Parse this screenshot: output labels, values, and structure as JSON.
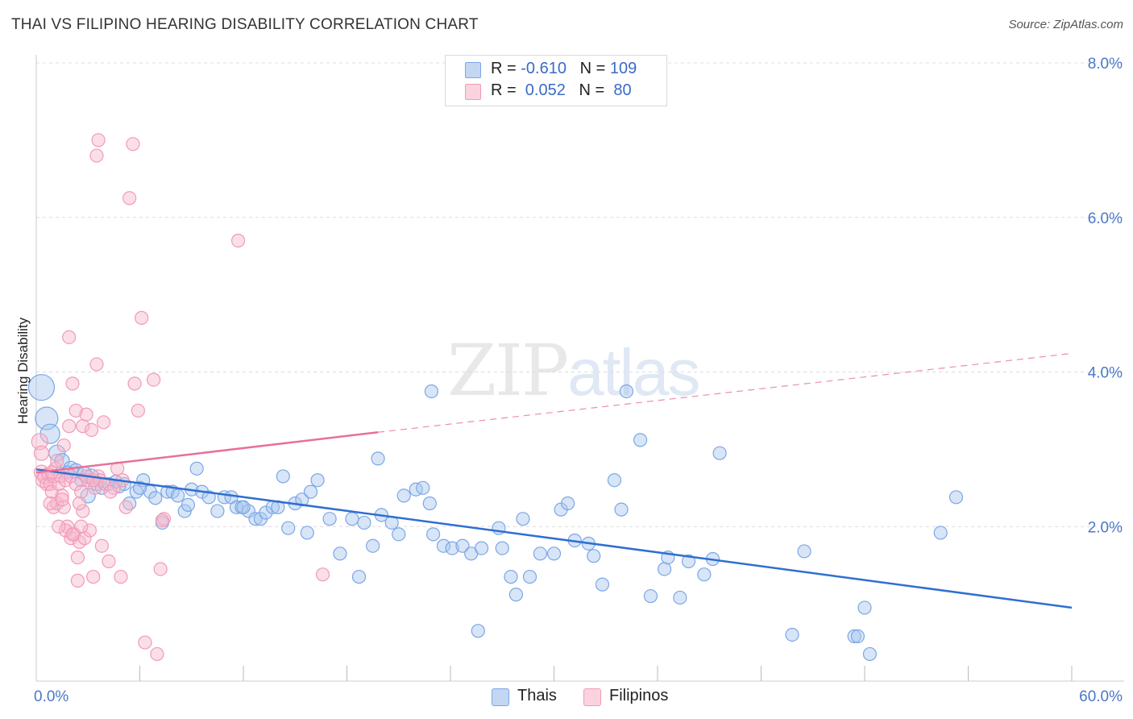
{
  "title": "THAI VS FILIPINO HEARING DISABILITY CORRELATION CHART",
  "source": "Source: ZipAtlas.com",
  "watermark": {
    "zip": "ZIP",
    "atlas": "atlas"
  },
  "legend": [
    {
      "r_label": "R =",
      "r_value": "-0.610",
      "n_label": "N =",
      "n_value": "109",
      "color": "#a9c6ee"
    },
    {
      "r_label": "R =",
      "r_value": " 0.052",
      "n_label": "N =",
      "n_value": " 80",
      "color": "#f7b9cc"
    }
  ],
  "bottom_legend": [
    {
      "label": "Thais",
      "color": "#a9c6ee"
    },
    {
      "label": "Filipinos",
      "color": "#f7b9cc"
    }
  ],
  "chart_data": {
    "type": "scatter",
    "title": "THAI VS FILIPINO HEARING DISABILITY CORRELATION CHART",
    "xlabel": "",
    "ylabel": "Hearing Disability",
    "xlim": [
      0,
      60
    ],
    "ylim": [
      0,
      8.0
    ],
    "x_tick_labels": [
      "0.0%",
      "60.0%"
    ],
    "y_ticks": [
      2.0,
      4.0,
      6.0,
      8.0
    ],
    "y_tick_labels": [
      "2.0%",
      "4.0%",
      "6.0%",
      "8.0%"
    ],
    "grid": true,
    "legend_position": "top-center",
    "series": [
      {
        "name": "Thais",
        "color": "#7aa7e6",
        "trend": {
          "x": [
            0,
            60
          ],
          "y": [
            2.74,
            0.95
          ],
          "color": "#2f6fd0"
        },
        "points": [
          [
            0.3,
            3.8,
            16
          ],
          [
            0.6,
            3.4,
            14
          ],
          [
            0.8,
            3.2,
            12
          ],
          [
            1.2,
            2.95,
            10
          ],
          [
            1.5,
            2.85,
            9
          ],
          [
            2.0,
            2.75,
            9
          ],
          [
            2.3,
            2.72,
            9
          ],
          [
            2.8,
            2.68,
            9
          ],
          [
            3.2,
            2.65,
            9
          ],
          [
            3.5,
            2.55,
            8
          ],
          [
            3.0,
            2.4,
            9
          ],
          [
            3.8,
            2.5,
            8
          ],
          [
            4.2,
            2.55,
            8
          ],
          [
            4.6,
            2.58,
            8
          ],
          [
            5.1,
            2.55,
            8
          ],
          [
            5.4,
            2.3,
            8
          ],
          [
            5.8,
            2.45,
            8
          ],
          [
            6.2,
            2.6,
            8
          ],
          [
            6.6,
            2.45,
            8
          ],
          [
            6.9,
            2.37,
            8
          ],
          [
            7.3,
            2.05,
            8
          ],
          [
            7.6,
            2.45,
            8
          ],
          [
            7.9,
            2.45,
            8
          ],
          [
            8.2,
            2.4,
            8
          ],
          [
            8.6,
            2.2,
            8
          ],
          [
            9.0,
            2.48,
            8
          ],
          [
            9.3,
            2.75,
            8
          ],
          [
            9.6,
            2.45,
            8
          ],
          [
            10.0,
            2.38,
            8
          ],
          [
            10.5,
            2.2,
            8
          ],
          [
            10.9,
            2.38,
            8
          ],
          [
            11.3,
            2.38,
            8
          ],
          [
            11.6,
            2.25,
            8
          ],
          [
            11.9,
            2.25,
            8
          ],
          [
            12.3,
            2.2,
            8
          ],
          [
            12.7,
            2.1,
            8
          ],
          [
            13.0,
            2.1,
            8
          ],
          [
            13.3,
            2.18,
            8
          ],
          [
            13.7,
            2.25,
            8
          ],
          [
            14.0,
            2.25,
            8
          ],
          [
            14.3,
            2.65,
            8
          ],
          [
            14.6,
            1.98,
            8
          ],
          [
            15.0,
            2.3,
            8
          ],
          [
            15.4,
            2.35,
            8
          ],
          [
            15.7,
            1.92,
            8
          ],
          [
            15.9,
            2.45,
            8
          ],
          [
            16.3,
            2.6,
            8
          ],
          [
            17.0,
            2.1,
            8
          ],
          [
            17.6,
            1.65,
            8
          ],
          [
            18.3,
            2.1,
            8
          ],
          [
            18.7,
            1.35,
            8
          ],
          [
            19.0,
            2.05,
            8
          ],
          [
            19.5,
            1.75,
            8
          ],
          [
            19.8,
            2.88,
            8
          ],
          [
            20.0,
            2.15,
            8
          ],
          [
            20.6,
            2.05,
            8
          ],
          [
            21.0,
            1.9,
            8
          ],
          [
            21.3,
            2.4,
            8
          ],
          [
            22.0,
            2.48,
            8
          ],
          [
            22.4,
            2.5,
            8
          ],
          [
            22.8,
            2.3,
            8
          ],
          [
            22.9,
            3.75,
            8
          ],
          [
            23.0,
            1.9,
            8
          ],
          [
            23.6,
            1.75,
            8
          ],
          [
            24.1,
            1.72,
            8
          ],
          [
            24.7,
            1.75,
            8
          ],
          [
            25.2,
            1.65,
            8
          ],
          [
            25.6,
            0.65,
            8
          ],
          [
            25.8,
            1.72,
            8
          ],
          [
            26.8,
            1.98,
            8
          ],
          [
            27.0,
            1.72,
            8
          ],
          [
            27.5,
            1.35,
            8
          ],
          [
            27.8,
            1.12,
            8
          ],
          [
            28.2,
            2.1,
            8
          ],
          [
            28.6,
            1.35,
            8
          ],
          [
            29.2,
            1.65,
            8
          ],
          [
            30.0,
            1.65,
            8
          ],
          [
            30.4,
            2.22,
            8
          ],
          [
            30.8,
            2.3,
            8
          ],
          [
            31.2,
            1.82,
            8
          ],
          [
            32.0,
            1.78,
            8
          ],
          [
            32.3,
            1.62,
            8
          ],
          [
            32.8,
            1.25,
            8
          ],
          [
            33.5,
            2.6,
            8
          ],
          [
            33.9,
            2.22,
            8
          ],
          [
            34.2,
            3.75,
            8
          ],
          [
            35.0,
            3.12,
            8
          ],
          [
            35.6,
            1.1,
            8
          ],
          [
            36.4,
            1.45,
            8
          ],
          [
            36.6,
            1.6,
            8
          ],
          [
            37.3,
            1.08,
            8
          ],
          [
            37.8,
            1.55,
            8
          ],
          [
            38.7,
            1.38,
            8
          ],
          [
            39.2,
            1.58,
            8
          ],
          [
            39.6,
            2.95,
            8
          ],
          [
            43.8,
            0.6,
            8
          ],
          [
            44.5,
            1.68,
            8
          ],
          [
            47.4,
            0.58,
            8
          ],
          [
            47.6,
            0.58,
            8
          ],
          [
            48.0,
            0.95,
            8
          ],
          [
            48.3,
            0.35,
            8
          ],
          [
            52.4,
            1.92,
            8
          ],
          [
            53.3,
            2.38,
            8
          ],
          [
            1.8,
            2.7,
            8
          ],
          [
            2.6,
            2.6,
            8
          ],
          [
            4.8,
            2.52,
            8
          ],
          [
            6.0,
            2.5,
            8
          ],
          [
            8.8,
            2.28,
            8
          ],
          [
            12.0,
            2.25,
            8
          ]
        ]
      },
      {
        "name": "Filipinos",
        "color": "#f29ab6",
        "trend": {
          "x": [
            0,
            19.8
          ],
          "y": [
            2.7,
            3.22
          ],
          "dashed_to": [
            60,
            4.24
          ],
          "color": "#e8709a"
        },
        "points": [
          [
            0.2,
            3.1,
            10
          ],
          [
            0.3,
            2.95,
            9
          ],
          [
            0.3,
            2.7,
            9
          ],
          [
            0.4,
            2.6,
            9
          ],
          [
            0.5,
            2.65,
            9
          ],
          [
            0.6,
            2.55,
            8
          ],
          [
            0.7,
            2.68,
            8
          ],
          [
            0.8,
            2.55,
            8
          ],
          [
            0.9,
            2.45,
            8
          ],
          [
            1.0,
            2.65,
            8
          ],
          [
            1.0,
            2.25,
            8
          ],
          [
            1.1,
            2.75,
            8
          ],
          [
            1.2,
            2.3,
            8
          ],
          [
            1.3,
            2.55,
            8
          ],
          [
            1.4,
            2.65,
            8
          ],
          [
            1.5,
            2.4,
            8
          ],
          [
            1.6,
            3.05,
            8
          ],
          [
            1.6,
            2.25,
            8
          ],
          [
            1.7,
            2.6,
            8
          ],
          [
            1.8,
            2.0,
            8
          ],
          [
            1.9,
            3.3,
            8
          ],
          [
            2.0,
            2.65,
            8
          ],
          [
            2.0,
            1.85,
            8
          ],
          [
            2.1,
            3.85,
            8
          ],
          [
            2.2,
            1.9,
            8
          ],
          [
            2.3,
            3.5,
            8
          ],
          [
            2.3,
            2.55,
            8
          ],
          [
            2.4,
            1.6,
            8
          ],
          [
            2.4,
            1.3,
            8
          ],
          [
            2.5,
            1.8,
            8
          ],
          [
            2.6,
            2.45,
            8
          ],
          [
            2.7,
            3.3,
            8
          ],
          [
            2.7,
            2.2,
            8
          ],
          [
            2.8,
            1.85,
            8
          ],
          [
            2.9,
            3.45,
            8
          ],
          [
            3.0,
            2.6,
            8
          ],
          [
            3.1,
            1.95,
            8
          ],
          [
            3.2,
            3.25,
            8
          ],
          [
            3.3,
            1.35,
            8
          ],
          [
            3.4,
            2.5,
            8
          ],
          [
            3.5,
            4.1,
            8
          ],
          [
            3.6,
            2.65,
            8
          ],
          [
            3.7,
            2.6,
            8
          ],
          [
            3.8,
            1.75,
            8
          ],
          [
            3.9,
            3.35,
            8
          ],
          [
            4.0,
            2.55,
            8
          ],
          [
            4.2,
            1.55,
            8
          ],
          [
            4.5,
            2.5,
            8
          ],
          [
            4.7,
            2.75,
            8
          ],
          [
            4.9,
            1.35,
            8
          ],
          [
            5.0,
            2.6,
            8
          ],
          [
            5.2,
            2.25,
            8
          ],
          [
            5.4,
            6.25,
            8
          ],
          [
            5.6,
            6.95,
            8
          ],
          [
            5.7,
            3.85,
            8
          ],
          [
            5.9,
            3.5,
            8
          ],
          [
            6.1,
            4.7,
            8
          ],
          [
            6.3,
            0.5,
            8
          ],
          [
            6.8,
            3.9,
            8
          ],
          [
            7.0,
            0.35,
            8
          ],
          [
            7.2,
            1.45,
            8
          ],
          [
            7.4,
            2.1,
            8
          ],
          [
            3.5,
            6.8,
            8
          ],
          [
            3.6,
            7.0,
            8
          ],
          [
            11.7,
            5.7,
            8
          ],
          [
            1.9,
            4.45,
            8
          ],
          [
            0.9,
            2.7,
            8
          ],
          [
            1.2,
            2.85,
            8
          ],
          [
            1.5,
            2.35,
            8
          ],
          [
            2.5,
            2.3,
            8
          ],
          [
            2.9,
            2.65,
            8
          ],
          [
            3.3,
            2.6,
            8
          ],
          [
            1.7,
            1.95,
            8
          ],
          [
            2.1,
            1.9,
            8
          ],
          [
            16.6,
            1.38,
            8
          ],
          [
            0.8,
            2.3,
            8
          ],
          [
            1.3,
            2.0,
            8
          ],
          [
            2.6,
            2.0,
            8
          ],
          [
            4.3,
            2.45,
            8
          ],
          [
            7.3,
            2.08,
            8
          ]
        ]
      }
    ]
  }
}
